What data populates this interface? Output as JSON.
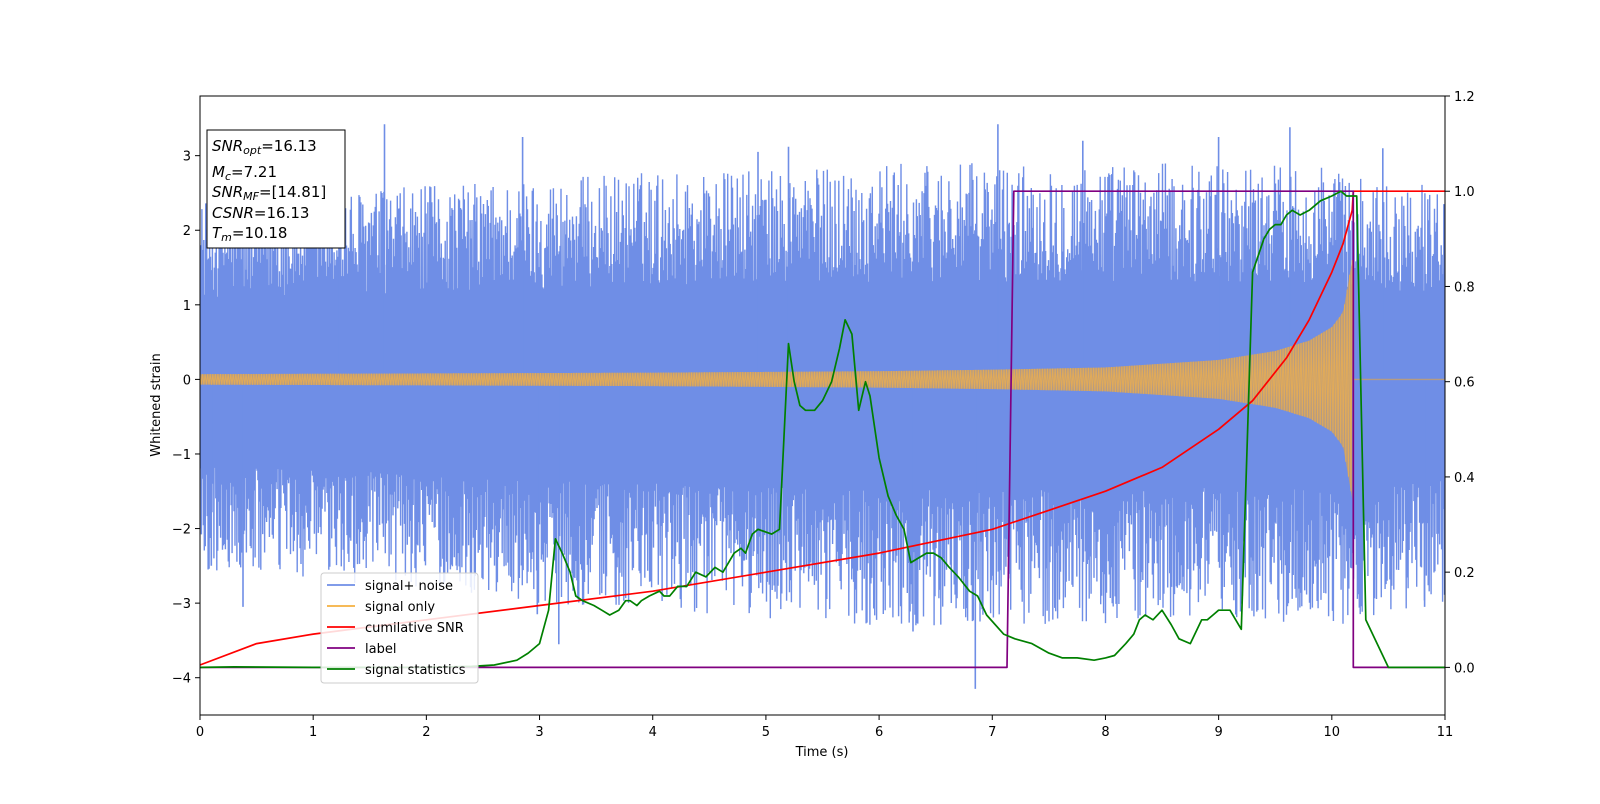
{
  "chart_data": {
    "type": "line",
    "xlabel": "Time (s)",
    "ylabel": "Whitened strain",
    "xlim": [
      0,
      11
    ],
    "ylim_left": [
      -4.5,
      3.8
    ],
    "ylim_right": [
      -0.1,
      1.2
    ],
    "x_ticks": [
      0,
      1,
      2,
      3,
      4,
      5,
      6,
      7,
      8,
      9,
      10,
      11
    ],
    "y_ticks_left": [
      -4,
      -3,
      -2,
      -1,
      0,
      1,
      2,
      3
    ],
    "y_ticks_left_labels": [
      "−4",
      "−3",
      "−2",
      "−1",
      "0",
      "1",
      "2",
      "3"
    ],
    "y_ticks_right": [
      0.0,
      0.2,
      0.4,
      0.6,
      0.8,
      1.0,
      1.2
    ],
    "y_ticks_right_labels": [
      "0.0",
      "0.2",
      "0.4",
      "0.6",
      "0.8",
      "1.0",
      "1.2"
    ],
    "grid": false,
    "legend_position": "lower-left",
    "stats_box": {
      "snr_opt": {
        "symbol": "SNR",
        "sub": "opt",
        "value": "=16.13"
      },
      "mc": {
        "symbol": "M",
        "sub": "c",
        "value": "=7.21"
      },
      "snr_mf": {
        "symbol": "SNR",
        "sub": "MF",
        "value": "=[14.81]"
      },
      "csnr": {
        "symbol": "CSNR",
        "sub": "",
        "value": "=16.13"
      },
      "tm": {
        "symbol": "T",
        "sub": "m",
        "value": "=10.18"
      }
    },
    "series": [
      {
        "name": "signal+ noise",
        "axis": "left",
        "color": "#6f8ee6",
        "kind": "noisy_envelope",
        "envelope": {
          "x": [
            0,
            1,
            2,
            3,
            4,
            5,
            6,
            7,
            8,
            9,
            10,
            10.18,
            11
          ],
          "lower": [
            -2.6,
            -2.7,
            -2.8,
            -3.0,
            -3.1,
            -3.2,
            -3.3,
            -3.3,
            -3.3,
            -3.2,
            -3.3,
            -3.3,
            -3.0
          ],
          "upper": [
            2.4,
            2.5,
            2.6,
            2.7,
            2.8,
            2.8,
            2.9,
            2.9,
            2.9,
            2.9,
            2.9,
            2.7,
            2.6
          ]
        },
        "spikes": [
          {
            "x": 0.1,
            "y": -2.5
          },
          {
            "x": 0.38,
            "y": -3.05
          },
          {
            "x": 1.23,
            "y": 3.35
          },
          {
            "x": 1.63,
            "y": 3.42
          },
          {
            "x": 2.85,
            "y": 3.25
          },
          {
            "x": 2.98,
            "y": -3.15
          },
          {
            "x": 3.17,
            "y": -3.55
          },
          {
            "x": 4.93,
            "y": 3.05
          },
          {
            "x": 5.2,
            "y": 3.12
          },
          {
            "x": 6.3,
            "y": -3.38
          },
          {
            "x": 6.85,
            "y": -4.15
          },
          {
            "x": 7.05,
            "y": 3.42
          },
          {
            "x": 7.8,
            "y": 3.2
          },
          {
            "x": 9.0,
            "y": 3.25
          },
          {
            "x": 9.63,
            "y": 3.38
          },
          {
            "x": 10.45,
            "y": 3.1
          },
          {
            "x": 10.82,
            "y": -3.05
          },
          {
            "x": 10.99,
            "y": 2.35
          }
        ]
      },
      {
        "name": "signal only",
        "axis": "left",
        "color": "#f5b041",
        "kind": "chirp_envelope",
        "merge_t": 10.18,
        "envelope": {
          "x": [
            0,
            2,
            4,
            6,
            7,
            8,
            9,
            9.5,
            9.8,
            10.0,
            10.1,
            10.18
          ],
          "amp": [
            0.07,
            0.08,
            0.09,
            0.11,
            0.13,
            0.16,
            0.26,
            0.38,
            0.52,
            0.7,
            0.9,
            1.6
          ]
        }
      },
      {
        "name": "cumilative SNR",
        "axis": "right",
        "color": "#ff0000",
        "x": [
          0,
          0.5,
          1,
          2,
          3,
          4,
          5,
          6,
          7,
          7.5,
          8,
          8.5,
          9,
          9.3,
          9.6,
          9.8,
          10.0,
          10.1,
          10.18,
          10.19,
          11
        ],
        "values": [
          0.005,
          0.05,
          0.07,
          0.1,
          0.13,
          0.16,
          0.2,
          0.24,
          0.29,
          0.33,
          0.37,
          0.42,
          0.5,
          0.56,
          0.65,
          0.73,
          0.83,
          0.89,
          0.96,
          1.0,
          1.0
        ]
      },
      {
        "name": "label",
        "axis": "right",
        "color": "#800080",
        "x": [
          0,
          7.13,
          7.19,
          10.19,
          10.19,
          11
        ],
        "values": [
          0.0,
          0.0,
          1.0,
          1.0,
          0.0,
          0.0
        ]
      },
      {
        "name": "signal statistics",
        "axis": "right",
        "color": "#008000",
        "x": [
          0,
          0.3,
          1,
          2,
          2.4,
          2.6,
          2.8,
          2.9,
          3.0,
          3.08,
          3.14,
          3.2,
          3.27,
          3.32,
          3.38,
          3.48,
          3.55,
          3.62,
          3.7,
          3.76,
          3.8,
          3.86,
          3.9,
          3.97,
          4.06,
          4.1,
          4.15,
          4.22,
          4.3,
          4.38,
          4.47,
          4.55,
          4.62,
          4.72,
          4.78,
          4.82,
          4.88,
          4.93,
          5.05,
          5.12,
          5.2,
          5.25,
          5.3,
          5.35,
          5.43,
          5.5,
          5.58,
          5.65,
          5.7,
          5.76,
          5.82,
          5.88,
          5.92,
          6.0,
          6.08,
          6.15,
          6.22,
          6.28,
          6.35,
          6.42,
          6.48,
          6.55,
          6.62,
          6.7,
          6.8,
          6.87,
          6.95,
          7.1,
          7.2,
          7.35,
          7.5,
          7.62,
          7.75,
          7.9,
          8.0,
          8.08,
          8.18,
          8.25,
          8.3,
          8.35,
          8.42,
          8.5,
          8.58,
          8.65,
          8.75,
          8.85,
          8.9,
          8.95,
          9.0,
          9.1,
          9.2,
          9.25,
          9.3,
          9.4,
          9.45,
          9.5,
          9.55,
          9.6,
          9.65,
          9.72,
          9.8,
          9.9,
          10.0,
          10.08,
          10.13,
          10.18,
          10.22,
          10.3,
          10.5,
          11
        ],
        "values": [
          0.0,
          0.001,
          0.0,
          0.0,
          0.002,
          0.005,
          0.015,
          0.03,
          0.05,
          0.12,
          0.27,
          0.24,
          0.2,
          0.15,
          0.14,
          0.13,
          0.12,
          0.11,
          0.12,
          0.14,
          0.14,
          0.13,
          0.14,
          0.15,
          0.16,
          0.15,
          0.15,
          0.17,
          0.17,
          0.2,
          0.19,
          0.21,
          0.2,
          0.24,
          0.25,
          0.24,
          0.28,
          0.29,
          0.28,
          0.29,
          0.68,
          0.6,
          0.55,
          0.54,
          0.54,
          0.56,
          0.6,
          0.67,
          0.73,
          0.7,
          0.54,
          0.6,
          0.57,
          0.44,
          0.36,
          0.32,
          0.29,
          0.22,
          0.23,
          0.24,
          0.24,
          0.23,
          0.21,
          0.19,
          0.16,
          0.15,
          0.11,
          0.07,
          0.06,
          0.05,
          0.03,
          0.02,
          0.02,
          0.015,
          0.02,
          0.025,
          0.05,
          0.07,
          0.1,
          0.11,
          0.1,
          0.12,
          0.09,
          0.06,
          0.05,
          0.1,
          0.1,
          0.11,
          0.12,
          0.12,
          0.08,
          0.45,
          0.83,
          0.9,
          0.92,
          0.93,
          0.93,
          0.95,
          0.96,
          0.95,
          0.96,
          0.98,
          0.99,
          1.0,
          0.99,
          0.99,
          0.99,
          0.1,
          0.0,
          0.0
        ]
      }
    ]
  }
}
